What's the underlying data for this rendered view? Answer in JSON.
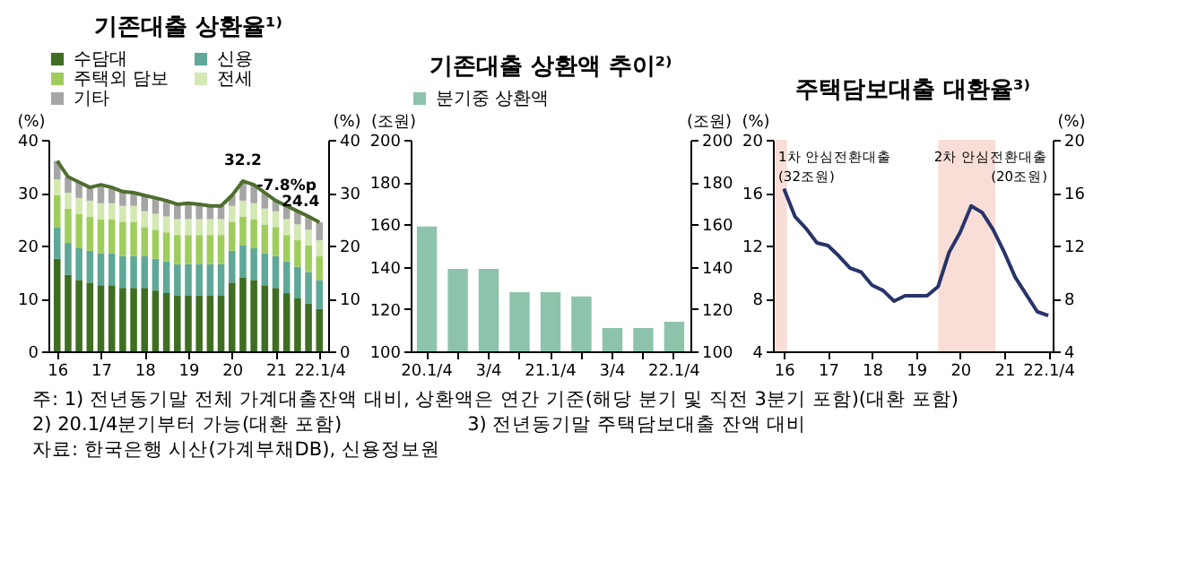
{
  "chart_data": [
    {
      "type": "bar",
      "stacked": true,
      "title": "기존대출 상환율¹⁾",
      "ylabel": "(%)",
      "y2label": "(%)",
      "legend": "top",
      "x": [
        2016,
        2016.25,
        2016.5,
        2016.75,
        2017,
        2017.25,
        2017.5,
        2017.75,
        2018,
        2018.25,
        2018.5,
        2018.75,
        2019,
        2019.25,
        2019.5,
        2019.75,
        2020,
        2020.25,
        2020.5,
        2020.75,
        2021,
        2021.25,
        2021.5,
        2021.75,
        2022
      ],
      "xlim": [
        2015.8,
        2022.2
      ],
      "xticks": [
        {
          "value": 2016,
          "label": "16"
        },
        {
          "value": 2017,
          "label": "17"
        },
        {
          "value": 2018,
          "label": "18"
        },
        {
          "value": 2019,
          "label": "19"
        },
        {
          "value": 2020,
          "label": "20"
        },
        {
          "value": 2021,
          "label": "21"
        },
        {
          "value": 2022,
          "label": "22.1/4"
        }
      ],
      "ylim": [
        0,
        40
      ],
      "yticks": [
        0,
        10,
        20,
        30,
        40
      ],
      "y2lim": [
        0,
        40
      ],
      "y2ticks": [
        0,
        10,
        20,
        30,
        40
      ],
      "series": [
        {
          "name": "수담대",
          "color": "#3f6e22",
          "values": [
            17.5,
            14.5,
            13.5,
            13,
            12.5,
            12.5,
            12,
            12,
            12,
            11.5,
            11,
            10.5,
            10.5,
            10.5,
            10.5,
            10.5,
            13,
            14,
            13.5,
            12.5,
            12,
            11,
            10,
            9,
            8
          ]
        },
        {
          "name": "신용",
          "color": "#5fa898",
          "values": [
            6,
            6,
            6,
            6,
            6,
            6,
            6,
            6,
            6,
            6,
            6,
            6,
            6,
            6,
            6,
            6,
            6,
            6,
            6,
            6,
            6,
            6,
            6,
            6,
            5.5
          ]
        },
        {
          "name": "주택외 담보",
          "color": "#9fcd5d",
          "values": [
            6,
            6.5,
            6.5,
            6.5,
            6.5,
            6.5,
            6.5,
            6.5,
            5.5,
            5.5,
            5.5,
            5.5,
            5.5,
            5.5,
            5.5,
            5.5,
            5.5,
            5.5,
            5.5,
            5.5,
            5.5,
            5,
            5,
            5,
            4.5
          ]
        },
        {
          "name": "전세",
          "color": "#d3e8b2",
          "values": [
            3,
            3,
            3,
            3,
            3,
            3,
            3,
            3,
            3,
            3,
            3,
            3,
            3,
            3,
            3,
            3,
            3,
            3,
            3,
            3,
            3,
            3,
            3,
            3,
            3
          ]
        },
        {
          "name": "기타",
          "color": "#a6a6a6",
          "values": [
            3.5,
            3,
            3,
            2.5,
            3.5,
            3,
            2.7,
            2.5,
            3,
            3,
            3,
            2.8,
            3,
            2.8,
            2.5,
            2.5,
            2,
            3.7,
            3.5,
            3,
            2,
            2.5,
            2.5,
            2.5,
            3.4
          ]
        },
        {
          "type": "line",
          "color": "#4e6e2e",
          "values": [
            36,
            33,
            32,
            31,
            31.5,
            31,
            30.2,
            30,
            29.5,
            29,
            28.5,
            27.8,
            28,
            27.8,
            27.5,
            27.5,
            29.5,
            32.2,
            31.5,
            30,
            28.5,
            27.5,
            26.5,
            25.5,
            24.4
          ]
        }
      ],
      "annotations": [
        {
          "text": "32.2",
          "x": 2020.25,
          "y": 32.2
        },
        {
          "text": "-7.8%p",
          "x": 2021.25,
          "y": 27.5
        },
        {
          "text": "24.4",
          "x": 2022,
          "y": 24.4
        },
        "주: 1) 전년동기말 전체 가계대출잔액 대비, 상환액은 연간 기준(해당 분기 및 직전 3분기 포함)(대환 포함)",
        "2) 20.1/4분기부터 가능(대환 포함)",
        "3) 전년동기말 주택담보대출 잔액 대비",
        "자료: 한국은행 시산(가계부채DB), 신용정보원"
      ]
    },
    {
      "type": "bar",
      "title": "기존대출 상환액 추이²⁾",
      "ylabel": "(조원)",
      "y2label": "(조원)",
      "legend": "top",
      "categories": [
        "20.1/4",
        null,
        "3/4",
        null,
        "21.1/4",
        null,
        "3/4",
        null,
        "22.1/4"
      ],
      "ylim": [
        100,
        200
      ],
      "yticks": [
        100,
        120,
        140,
        160,
        180,
        200
      ],
      "y2lim": [
        100,
        200
      ],
      "y2ticks": [
        100,
        120,
        140,
        160,
        180,
        200
      ],
      "series": [
        {
          "name": "분기중 상환액",
          "color": "#8dc3ab",
          "values": [
            159,
            139,
            139,
            128,
            128,
            126,
            111,
            111,
            114
          ]
        }
      ]
    },
    {
      "type": "line",
      "title": "주택담보대출 대환율³⁾",
      "ylabel": "(%)",
      "y2label": "(%)",
      "x": [
        2016,
        2016.25,
        2016.5,
        2016.75,
        2017,
        2017.25,
        2017.5,
        2017.75,
        2018,
        2018.25,
        2018.5,
        2018.75,
        2019,
        2019.25,
        2019.5,
        2019.75,
        2020,
        2020.25,
        2020.5,
        2020.75,
        2021,
        2021.25,
        2021.5,
        2021.75,
        2022
      ],
      "xlim": [
        2015.75,
        2022.1
      ],
      "xticks": [
        {
          "value": 2016,
          "label": "16"
        },
        {
          "value": 2017,
          "label": "17"
        },
        {
          "value": 2018,
          "label": "18"
        },
        {
          "value": 2019,
          "label": "19"
        },
        {
          "value": 2020,
          "label": "20"
        },
        {
          "value": 2021,
          "label": "21"
        },
        {
          "value": 2022,
          "label": "22.1/4"
        }
      ],
      "ylim": [
        4,
        20
      ],
      "yticks": [
        4,
        8,
        12,
        16,
        20
      ],
      "y2lim": [
        4,
        20
      ],
      "y2ticks": [
        4,
        8,
        12,
        16,
        20
      ],
      "series": [
        {
          "color": "#27346b",
          "values": [
            16.3,
            14.2,
            13.3,
            12.2,
            12,
            11.2,
            10.3,
            10,
            9,
            8.6,
            7.8,
            8.2,
            8.2,
            8.2,
            8.9,
            11.5,
            13,
            15,
            14.5,
            13.2,
            11.5,
            9.6,
            8.3,
            7,
            6.7
          ]
        }
      ],
      "bands": [
        {
          "axis": "x",
          "from": 2015.8,
          "to": 2016.07,
          "label": "1차 안심전환대출\n(32조원)",
          "color": "#f8ded6"
        },
        {
          "axis": "x",
          "from": 2019.5,
          "to": 2020.8,
          "label": "2차 안심전환대출\n(20조원)",
          "color": "#f8ded6"
        }
      ]
    }
  ]
}
